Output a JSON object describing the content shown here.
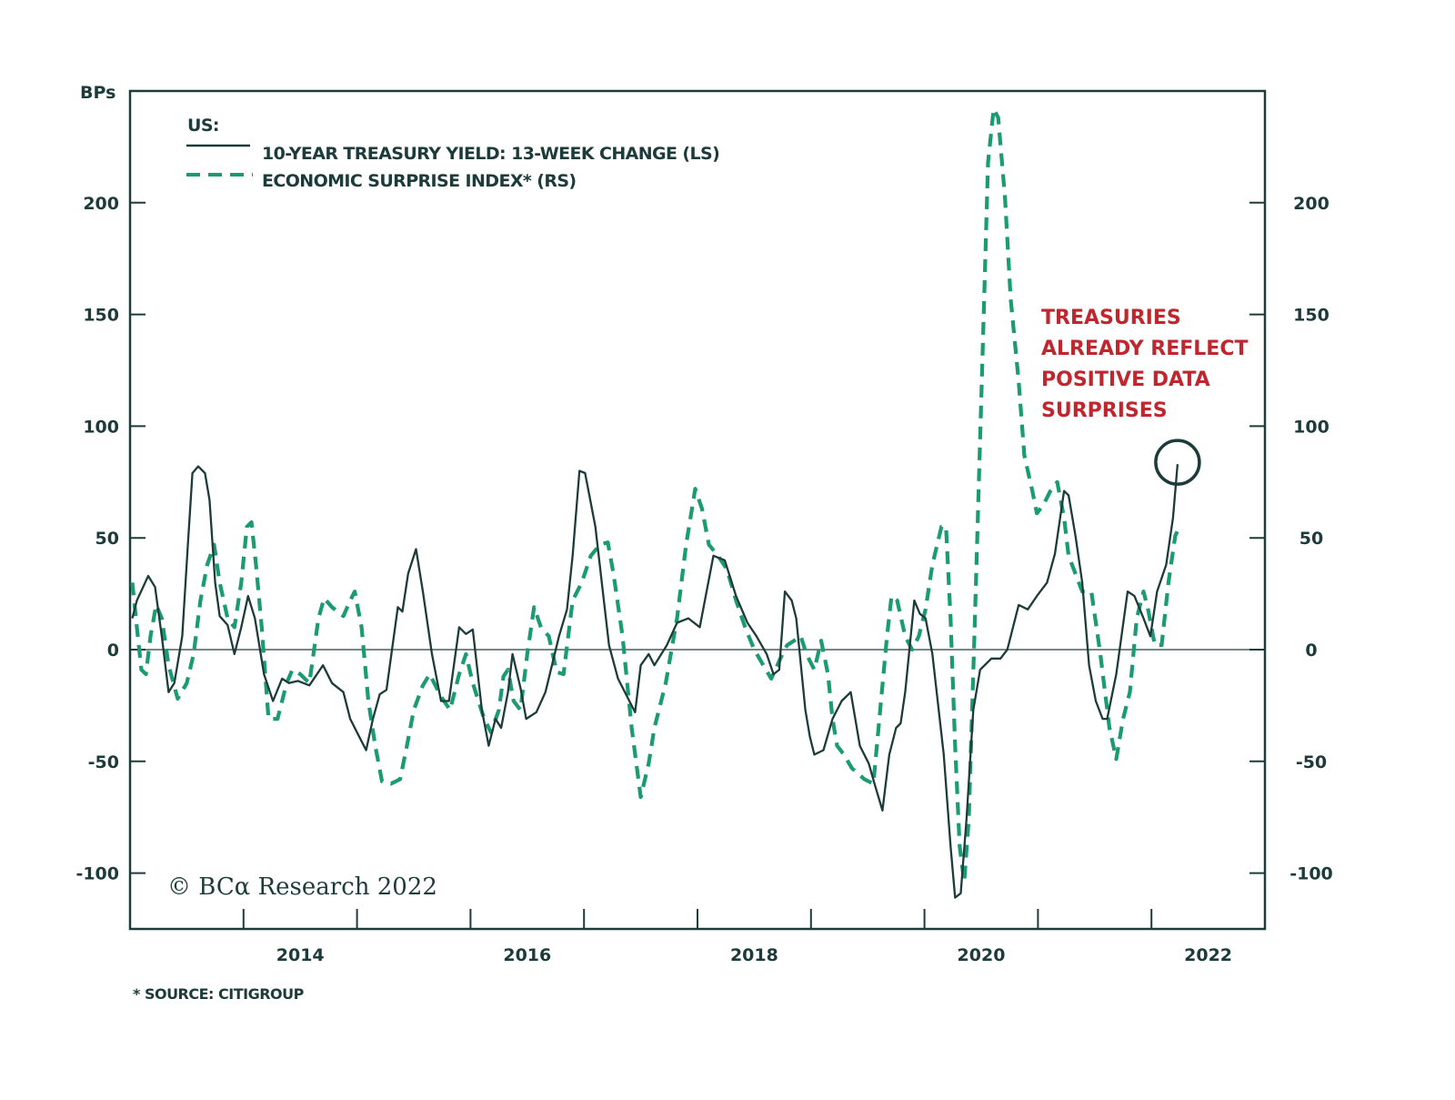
{
  "chart_data": {
    "type": "line",
    "title": "",
    "ylabel": "BPs",
    "ylim": [
      -125,
      250
    ],
    "y_ticks": [
      -100,
      -50,
      0,
      50,
      100,
      150,
      200
    ],
    "y_tick_labels": [
      "-100",
      "-50",
      "0",
      "50",
      "100",
      "150",
      "200"
    ],
    "right_y_tick_labels": [
      "-100",
      "-50",
      "0",
      "50",
      "100",
      "150",
      "200"
    ],
    "xlim": [
      2013,
      2023
    ],
    "x_tick_years": [
      2014,
      2015,
      2016,
      2017,
      2018,
      2019,
      2020,
      2021,
      2022
    ],
    "x_labels": [
      {
        "year": 2014.5,
        "text": "2014"
      },
      {
        "year": 2016.5,
        "text": "2016"
      },
      {
        "year": 2018.5,
        "text": "2018"
      },
      {
        "year": 2020.5,
        "text": "2020"
      },
      {
        "year": 2022.5,
        "text": "2022"
      }
    ],
    "grid": false,
    "zero_line": true,
    "legend": {
      "title": "US:",
      "placement": "top-left",
      "items": [
        "10-YEAR TREASURY YIELD: 13-WEEK CHANGE (LS)",
        "ECONOMIC SURPRISE INDEX* (RS)"
      ]
    },
    "series": [
      {
        "name": "10-YEAR TREASURY YIELD: 13-WEEK CHANGE (LS)",
        "style": "solid",
        "color": "#1d3b3a",
        "points": [
          [
            2013.02,
            14
          ],
          [
            2013.06,
            22
          ],
          [
            2013.16,
            33
          ],
          [
            2013.22,
            28
          ],
          [
            2013.28,
            6
          ],
          [
            2013.34,
            -19
          ],
          [
            2013.39,
            -15
          ],
          [
            2013.46,
            6
          ],
          [
            2013.51,
            47
          ],
          [
            2013.55,
            79
          ],
          [
            2013.6,
            82
          ],
          [
            2013.66,
            79
          ],
          [
            2013.7,
            67
          ],
          [
            2013.75,
            30
          ],
          [
            2013.79,
            15
          ],
          [
            2013.86,
            11
          ],
          [
            2013.92,
            -2
          ],
          [
            2013.98,
            10
          ],
          [
            2014.04,
            24
          ],
          [
            2014.1,
            14
          ],
          [
            2014.18,
            -11
          ],
          [
            2014.26,
            -23
          ],
          [
            2014.34,
            -13
          ],
          [
            2014.4,
            -15
          ],
          [
            2014.48,
            -14
          ],
          [
            2014.58,
            -16
          ],
          [
            2014.7,
            -7
          ],
          [
            2014.78,
            -15
          ],
          [
            2014.88,
            -19
          ],
          [
            2014.94,
            -31
          ],
          [
            2015.02,
            -39
          ],
          [
            2015.08,
            -45
          ],
          [
            2015.14,
            -31
          ],
          [
            2015.2,
            -20
          ],
          [
            2015.26,
            -18
          ],
          [
            2015.36,
            19
          ],
          [
            2015.4,
            17
          ],
          [
            2015.45,
            34
          ],
          [
            2015.52,
            45
          ],
          [
            2015.58,
            26
          ],
          [
            2015.66,
            -2
          ],
          [
            2015.74,
            -23
          ],
          [
            2015.81,
            -23
          ],
          [
            2015.9,
            10
          ],
          [
            2015.96,
            7
          ],
          [
            2016.02,
            9
          ],
          [
            2016.1,
            -27
          ],
          [
            2016.16,
            -43
          ],
          [
            2016.22,
            -31
          ],
          [
            2016.27,
            -35
          ],
          [
            2016.33,
            -19
          ],
          [
            2016.37,
            -2
          ],
          [
            2016.44,
            -17
          ],
          [
            2016.49,
            -31
          ],
          [
            2016.58,
            -28
          ],
          [
            2016.66,
            -19
          ],
          [
            2016.78,
            6
          ],
          [
            2016.85,
            18
          ],
          [
            2016.9,
            42
          ],
          [
            2016.96,
            80
          ],
          [
            2017.01,
            79
          ],
          [
            2017.1,
            55
          ],
          [
            2017.22,
            2
          ],
          [
            2017.3,
            -13
          ],
          [
            2017.4,
            -23
          ],
          [
            2017.45,
            -28
          ],
          [
            2017.5,
            -7
          ],
          [
            2017.57,
            -2
          ],
          [
            2017.62,
            -7
          ],
          [
            2017.73,
            2
          ],
          [
            2017.82,
            12
          ],
          [
            2017.92,
            14
          ],
          [
            2018.02,
            10
          ],
          [
            2018.14,
            42
          ],
          [
            2018.24,
            40
          ],
          [
            2018.34,
            24
          ],
          [
            2018.44,
            12
          ],
          [
            2018.52,
            6
          ],
          [
            2018.61,
            -2
          ],
          [
            2018.67,
            -11
          ],
          [
            2018.72,
            -9
          ],
          [
            2018.77,
            26
          ],
          [
            2018.83,
            22
          ],
          [
            2018.87,
            14
          ],
          [
            2018.95,
            -27
          ],
          [
            2018.99,
            -39
          ],
          [
            2019.03,
            -47
          ],
          [
            2019.11,
            -45
          ],
          [
            2019.19,
            -31
          ],
          [
            2019.27,
            -23
          ],
          [
            2019.35,
            -19
          ],
          [
            2019.39,
            -31
          ],
          [
            2019.43,
            -43
          ],
          [
            2019.51,
            -51
          ],
          [
            2019.56,
            -60
          ],
          [
            2019.63,
            -72
          ],
          [
            2019.69,
            -47
          ],
          [
            2019.75,
            -35
          ],
          [
            2019.79,
            -33
          ],
          [
            2019.83,
            -19
          ],
          [
            2019.91,
            22
          ],
          [
            2019.96,
            16
          ],
          [
            2020.01,
            14
          ],
          [
            2020.07,
            -2
          ],
          [
            2020.17,
            -47
          ],
          [
            2020.23,
            -88
          ],
          [
            2020.27,
            -111
          ],
          [
            2020.32,
            -109
          ],
          [
            2020.37,
            -76
          ],
          [
            2020.43,
            -27
          ],
          [
            2020.49,
            -9
          ],
          [
            2020.59,
            -4
          ],
          [
            2020.67,
            -4
          ],
          [
            2020.73,
            0
          ],
          [
            2020.83,
            20
          ],
          [
            2020.91,
            18
          ],
          [
            2020.99,
            24
          ],
          [
            2021.08,
            30
          ],
          [
            2021.15,
            43
          ],
          [
            2021.23,
            71
          ],
          [
            2021.27,
            69
          ],
          [
            2021.33,
            51
          ],
          [
            2021.39,
            30
          ],
          [
            2021.45,
            -7
          ],
          [
            2021.51,
            -23
          ],
          [
            2021.57,
            -31
          ],
          [
            2021.61,
            -31
          ],
          [
            2021.69,
            -11
          ],
          [
            2021.79,
            26
          ],
          [
            2021.85,
            24
          ],
          [
            2021.93,
            14
          ],
          [
            2021.99,
            6
          ],
          [
            2022.05,
            26
          ],
          [
            2022.13,
            38
          ],
          [
            2022.19,
            59
          ],
          [
            2022.23,
            83
          ]
        ]
      },
      {
        "name": "ECONOMIC SURPRISE INDEX* (RS)",
        "style": "dashed",
        "color": "#1a9b72",
        "points": [
          [
            2013.02,
            30
          ],
          [
            2013.06,
            10
          ],
          [
            2013.1,
            -9
          ],
          [
            2013.14,
            -11
          ],
          [
            2013.18,
            6
          ],
          [
            2013.23,
            20
          ],
          [
            2013.28,
            14
          ],
          [
            2013.34,
            -7
          ],
          [
            2013.42,
            -22
          ],
          [
            2013.5,
            -15
          ],
          [
            2013.56,
            -2
          ],
          [
            2013.62,
            22
          ],
          [
            2013.68,
            38
          ],
          [
            2013.74,
            47
          ],
          [
            2013.79,
            30
          ],
          [
            2013.86,
            14
          ],
          [
            2013.92,
            10
          ],
          [
            2013.98,
            30
          ],
          [
            2014.03,
            55
          ],
          [
            2014.07,
            57
          ],
          [
            2014.11,
            38
          ],
          [
            2014.16,
            10
          ],
          [
            2014.22,
            -31
          ],
          [
            2014.3,
            -31
          ],
          [
            2014.38,
            -15
          ],
          [
            2014.43,
            -9
          ],
          [
            2014.5,
            -11
          ],
          [
            2014.58,
            -15
          ],
          [
            2014.66,
            14
          ],
          [
            2014.71,
            23
          ],
          [
            2014.78,
            19
          ],
          [
            2014.88,
            15
          ],
          [
            2014.94,
            22
          ],
          [
            2014.98,
            26
          ],
          [
            2015.04,
            10
          ],
          [
            2015.1,
            -23
          ],
          [
            2015.16,
            -43
          ],
          [
            2015.22,
            -59
          ],
          [
            2015.3,
            -60
          ],
          [
            2015.38,
            -58
          ],
          [
            2015.44,
            -43
          ],
          [
            2015.5,
            -27
          ],
          [
            2015.58,
            -16
          ],
          [
            2015.64,
            -11
          ],
          [
            2015.74,
            -21
          ],
          [
            2015.82,
            -27
          ],
          [
            2015.9,
            -11
          ],
          [
            2015.96,
            -2
          ],
          [
            2016.02,
            -15
          ],
          [
            2016.12,
            -31
          ],
          [
            2016.18,
            -37
          ],
          [
            2016.25,
            -27
          ],
          [
            2016.29,
            -12
          ],
          [
            2016.33,
            -9
          ],
          [
            2016.38,
            -23
          ],
          [
            2016.44,
            -27
          ],
          [
            2016.5,
            -2
          ],
          [
            2016.56,
            19
          ],
          [
            2016.62,
            10
          ],
          [
            2016.69,
            6
          ],
          [
            2016.76,
            -10
          ],
          [
            2016.82,
            -11
          ],
          [
            2016.9,
            22
          ],
          [
            2016.98,
            30
          ],
          [
            2017.06,
            42
          ],
          [
            2017.14,
            47
          ],
          [
            2017.21,
            48
          ],
          [
            2017.26,
            34
          ],
          [
            2017.34,
            6
          ],
          [
            2017.42,
            -35
          ],
          [
            2017.5,
            -66
          ],
          [
            2017.57,
            -51
          ],
          [
            2017.62,
            -35
          ],
          [
            2017.72,
            -15
          ],
          [
            2017.82,
            14
          ],
          [
            2017.9,
            47
          ],
          [
            2017.98,
            72
          ],
          [
            2018.04,
            63
          ],
          [
            2018.1,
            47
          ],
          [
            2018.18,
            42
          ],
          [
            2018.26,
            36
          ],
          [
            2018.34,
            22
          ],
          [
            2018.42,
            10
          ],
          [
            2018.5,
            0
          ],
          [
            2018.58,
            -7
          ],
          [
            2018.65,
            -13
          ],
          [
            2018.73,
            -4
          ],
          [
            2018.79,
            2
          ],
          [
            2018.91,
            6
          ],
          [
            2018.96,
            -2
          ],
          [
            2019.03,
            -9
          ],
          [
            2019.09,
            4
          ],
          [
            2019.15,
            -11
          ],
          [
            2019.19,
            -31
          ],
          [
            2019.23,
            -43
          ],
          [
            2019.29,
            -47
          ],
          [
            2019.36,
            -53
          ],
          [
            2019.47,
            -58
          ],
          [
            2019.55,
            -60
          ],
          [
            2019.61,
            -27
          ],
          [
            2019.67,
            6
          ],
          [
            2019.71,
            24
          ],
          [
            2019.76,
            22
          ],
          [
            2019.83,
            6
          ],
          [
            2019.89,
            0
          ],
          [
            2019.95,
            6
          ],
          [
            2020.01,
            18
          ],
          [
            2020.07,
            38
          ],
          [
            2020.15,
            55
          ],
          [
            2020.19,
            55
          ],
          [
            2020.23,
            14
          ],
          [
            2020.27,
            -43
          ],
          [
            2020.31,
            -88
          ],
          [
            2020.35,
            -104
          ],
          [
            2020.39,
            -76
          ],
          [
            2020.44,
            6
          ],
          [
            2020.51,
            128
          ],
          [
            2020.56,
            218
          ],
          [
            2020.61,
            242
          ],
          [
            2020.65,
            238
          ],
          [
            2020.71,
            202
          ],
          [
            2020.76,
            157
          ],
          [
            2020.83,
            120
          ],
          [
            2020.88,
            87
          ],
          [
            2020.95,
            71
          ],
          [
            2020.99,
            61
          ],
          [
            2021.05,
            65
          ],
          [
            2021.11,
            71
          ],
          [
            2021.17,
            75
          ],
          [
            2021.23,
            59
          ],
          [
            2021.27,
            42
          ],
          [
            2021.33,
            34
          ],
          [
            2021.39,
            26
          ],
          [
            2021.47,
            26
          ],
          [
            2021.55,
            -2
          ],
          [
            2021.63,
            -35
          ],
          [
            2021.69,
            -49
          ],
          [
            2021.75,
            -31
          ],
          [
            2021.81,
            -19
          ],
          [
            2021.87,
            14
          ],
          [
            2021.93,
            26
          ],
          [
            2021.97,
            18
          ],
          [
            2022.03,
            2
          ],
          [
            2022.09,
            2
          ],
          [
            2022.15,
            30
          ],
          [
            2022.21,
            51
          ],
          [
            2022.25,
            55
          ]
        ]
      }
    ],
    "annotation": {
      "lines": [
        "TREASURIES",
        "ALREADY REFLECT",
        "POSITIVE DATA",
        "SURPRISES"
      ],
      "color": "#c0262d",
      "circle_at": [
        2022.23,
        83
      ]
    },
    "copyright": "© BCα Research 2022",
    "footnote": "* SOURCE: CITIGROUP"
  }
}
